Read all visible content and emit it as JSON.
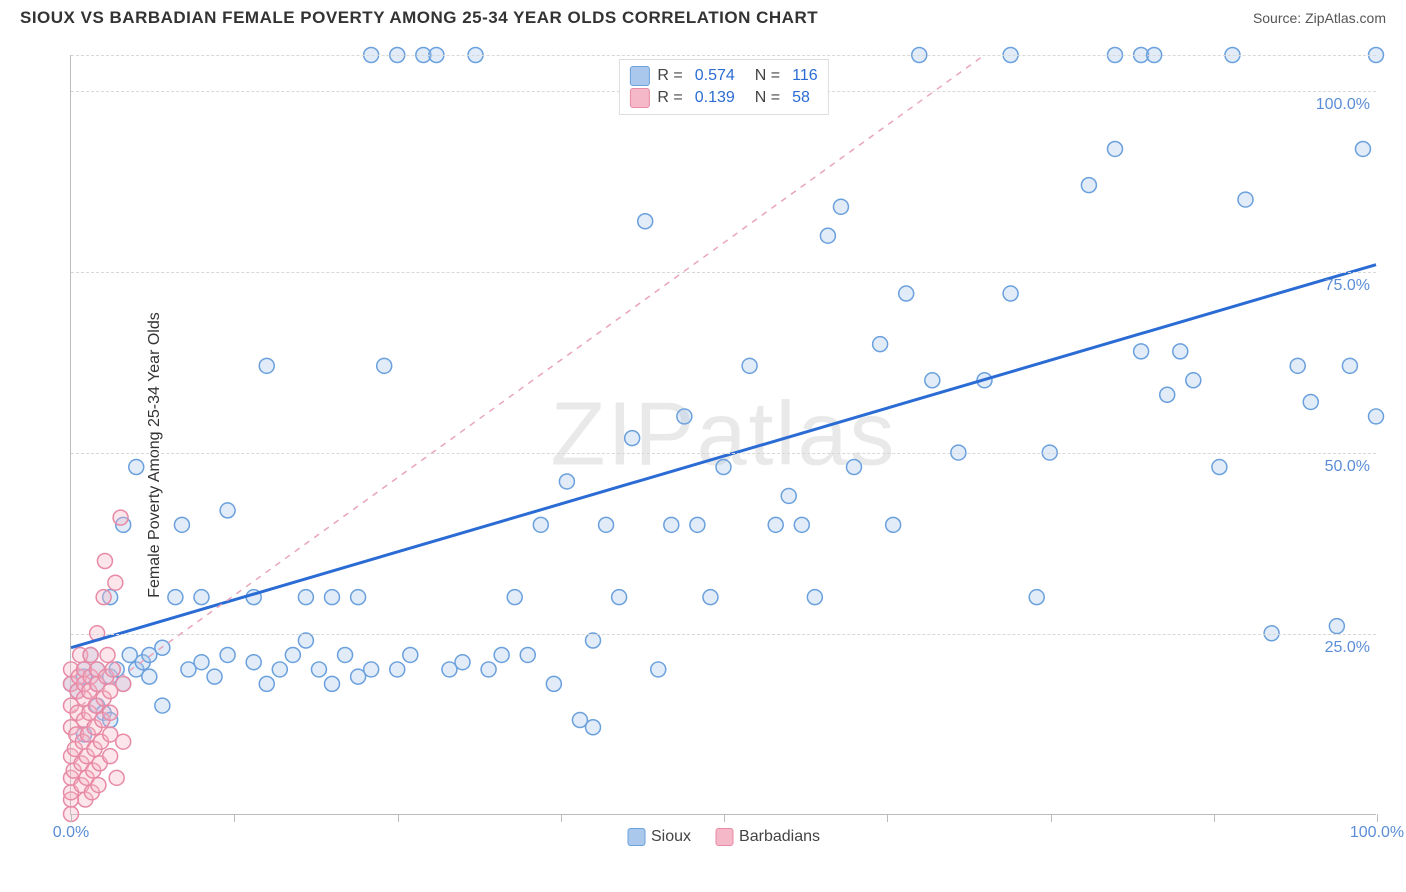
{
  "header": {
    "title": "SIOUX VS BARBADIAN FEMALE POVERTY AMONG 25-34 YEAR OLDS CORRELATION CHART",
    "source_prefix": "Source: ",
    "source_name": "ZipAtlas.com"
  },
  "chart": {
    "type": "scatter",
    "y_axis_label": "Female Poverty Among 25-34 Year Olds",
    "watermark": "ZIPatlas",
    "xlim": [
      0,
      100
    ],
    "ylim": [
      0,
      105
    ],
    "x_ticks": [
      0,
      12.5,
      25,
      37.5,
      50,
      62.5,
      75,
      87.5,
      100
    ],
    "x_tick_labels": {
      "0": "0.0%",
      "100": "100.0%"
    },
    "y_grid": [
      25,
      50,
      75,
      100,
      105
    ],
    "y_tick_labels": {
      "25": "25.0%",
      "50": "50.0%",
      "75": "75.0%",
      "100": "100.0%"
    },
    "background_color": "#ffffff",
    "grid_color": "#d8d8d8",
    "axis_color": "#bbbbbb",
    "marker_radius": 7.5,
    "series": [
      {
        "name": "Sioux",
        "color_fill": "#a9c8ec",
        "color_stroke": "#6aa0dd",
        "R": "0.574",
        "N": "116",
        "trend": {
          "type": "solid",
          "color": "#2b6cd4",
          "width": 3,
          "x1": 0,
          "y1": 23,
          "x2": 100,
          "y2": 76
        },
        "points": [
          [
            0,
            18
          ],
          [
            0.5,
            17
          ],
          [
            1,
            19
          ],
          [
            1,
            20
          ],
          [
            1,
            11
          ],
          [
            1.5,
            22
          ],
          [
            2,
            15
          ],
          [
            2,
            18
          ],
          [
            2,
            20
          ],
          [
            2.5,
            14
          ],
          [
            3,
            19
          ],
          [
            3,
            30
          ],
          [
            3,
            13
          ],
          [
            3.5,
            20
          ],
          [
            4,
            40
          ],
          [
            4,
            18
          ],
          [
            4.5,
            22
          ],
          [
            5,
            48
          ],
          [
            5,
            20
          ],
          [
            5.5,
            21
          ],
          [
            6,
            19
          ],
          [
            6,
            22
          ],
          [
            7,
            23
          ],
          [
            7,
            15
          ],
          [
            8,
            30
          ],
          [
            8.5,
            40
          ],
          [
            9,
            20
          ],
          [
            10,
            21
          ],
          [
            10,
            30
          ],
          [
            11,
            19
          ],
          [
            12,
            22
          ],
          [
            12,
            42
          ],
          [
            14,
            21
          ],
          [
            14,
            30
          ],
          [
            15,
            18
          ],
          [
            15,
            62
          ],
          [
            16,
            20
          ],
          [
            17,
            22
          ],
          [
            18,
            24
          ],
          [
            18,
            30
          ],
          [
            19,
            20
          ],
          [
            20,
            30
          ],
          [
            20,
            18
          ],
          [
            21,
            22
          ],
          [
            22,
            19
          ],
          [
            22,
            30
          ],
          [
            23,
            20
          ],
          [
            23,
            105
          ],
          [
            24,
            62
          ],
          [
            25,
            20
          ],
          [
            25,
            105
          ],
          [
            26,
            22
          ],
          [
            27,
            105
          ],
          [
            28,
            105
          ],
          [
            29,
            20
          ],
          [
            30,
            21
          ],
          [
            31,
            105
          ],
          [
            32,
            20
          ],
          [
            33,
            22
          ],
          [
            34,
            30
          ],
          [
            35,
            22
          ],
          [
            36,
            40
          ],
          [
            37,
            18
          ],
          [
            38,
            46
          ],
          [
            39,
            13
          ],
          [
            40,
            24
          ],
          [
            40,
            12
          ],
          [
            41,
            40
          ],
          [
            42,
            30
          ],
          [
            43,
            52
          ],
          [
            44,
            82
          ],
          [
            45,
            20
          ],
          [
            46,
            40
          ],
          [
            47,
            55
          ],
          [
            48,
            40
          ],
          [
            49,
            30
          ],
          [
            50,
            48
          ],
          [
            52,
            62
          ],
          [
            54,
            40
          ],
          [
            55,
            44
          ],
          [
            56,
            40
          ],
          [
            57,
            30
          ],
          [
            58,
            80
          ],
          [
            59,
            84
          ],
          [
            60,
            48
          ],
          [
            62,
            65
          ],
          [
            63,
            40
          ],
          [
            64,
            72
          ],
          [
            65,
            105
          ],
          [
            66,
            60
          ],
          [
            68,
            50
          ],
          [
            70,
            60
          ],
          [
            72,
            72
          ],
          [
            72,
            105
          ],
          [
            74,
            30
          ],
          [
            75,
            50
          ],
          [
            78,
            87
          ],
          [
            80,
            92
          ],
          [
            80,
            105
          ],
          [
            82,
            64
          ],
          [
            82,
            105
          ],
          [
            83,
            105
          ],
          [
            84,
            58
          ],
          [
            85,
            64
          ],
          [
            86,
            60
          ],
          [
            88,
            48
          ],
          [
            89,
            105
          ],
          [
            90,
            85
          ],
          [
            92,
            25
          ],
          [
            94,
            62
          ],
          [
            95,
            57
          ],
          [
            97,
            26
          ],
          [
            98,
            62
          ],
          [
            99,
            92
          ],
          [
            100,
            55
          ],
          [
            100,
            105
          ]
        ]
      },
      {
        "name": "Barbadians",
        "color_fill": "#f5b8c8",
        "color_stroke": "#e88aa5",
        "R": "0.139",
        "N": "58",
        "trend": {
          "type": "dashed",
          "color": "#e9a5b9",
          "width": 1.5,
          "x1": 0,
          "y1": 14,
          "x2": 70,
          "y2": 105
        },
        "points": [
          [
            0,
            0
          ],
          [
            0,
            2
          ],
          [
            0,
            5
          ],
          [
            0,
            8
          ],
          [
            0,
            12
          ],
          [
            0,
            15
          ],
          [
            0,
            18
          ],
          [
            0,
            20
          ],
          [
            0,
            3
          ],
          [
            0.2,
            6
          ],
          [
            0.3,
            9
          ],
          [
            0.4,
            11
          ],
          [
            0.5,
            14
          ],
          [
            0.5,
            17
          ],
          [
            0.6,
            19
          ],
          [
            0.7,
            22
          ],
          [
            0.8,
            4
          ],
          [
            0.8,
            7
          ],
          [
            0.9,
            10
          ],
          [
            1,
            13
          ],
          [
            1,
            16
          ],
          [
            1,
            18
          ],
          [
            1,
            20
          ],
          [
            1.1,
            2
          ],
          [
            1.2,
            5
          ],
          [
            1.2,
            8
          ],
          [
            1.3,
            11
          ],
          [
            1.4,
            14
          ],
          [
            1.4,
            17
          ],
          [
            1.5,
            19
          ],
          [
            1.5,
            22
          ],
          [
            1.6,
            3
          ],
          [
            1.7,
            6
          ],
          [
            1.8,
            9
          ],
          [
            1.8,
            12
          ],
          [
            1.9,
            15
          ],
          [
            2,
            18
          ],
          [
            2,
            20
          ],
          [
            2,
            25
          ],
          [
            2.1,
            4
          ],
          [
            2.2,
            7
          ],
          [
            2.3,
            10
          ],
          [
            2.4,
            13
          ],
          [
            2.5,
            16
          ],
          [
            2.5,
            30
          ],
          [
            2.6,
            35
          ],
          [
            2.7,
            19
          ],
          [
            2.8,
            22
          ],
          [
            3,
            8
          ],
          [
            3,
            11
          ],
          [
            3,
            14
          ],
          [
            3,
            17
          ],
          [
            3.2,
            20
          ],
          [
            3.4,
            32
          ],
          [
            3.5,
            5
          ],
          [
            3.8,
            41
          ],
          [
            4,
            18
          ],
          [
            4,
            10
          ]
        ]
      }
    ],
    "bottom_legend": [
      {
        "label": "Sioux",
        "fill": "#a9c8ec",
        "stroke": "#6aa0dd"
      },
      {
        "label": "Barbadians",
        "fill": "#f5b8c8",
        "stroke": "#e88aa5"
      }
    ]
  }
}
